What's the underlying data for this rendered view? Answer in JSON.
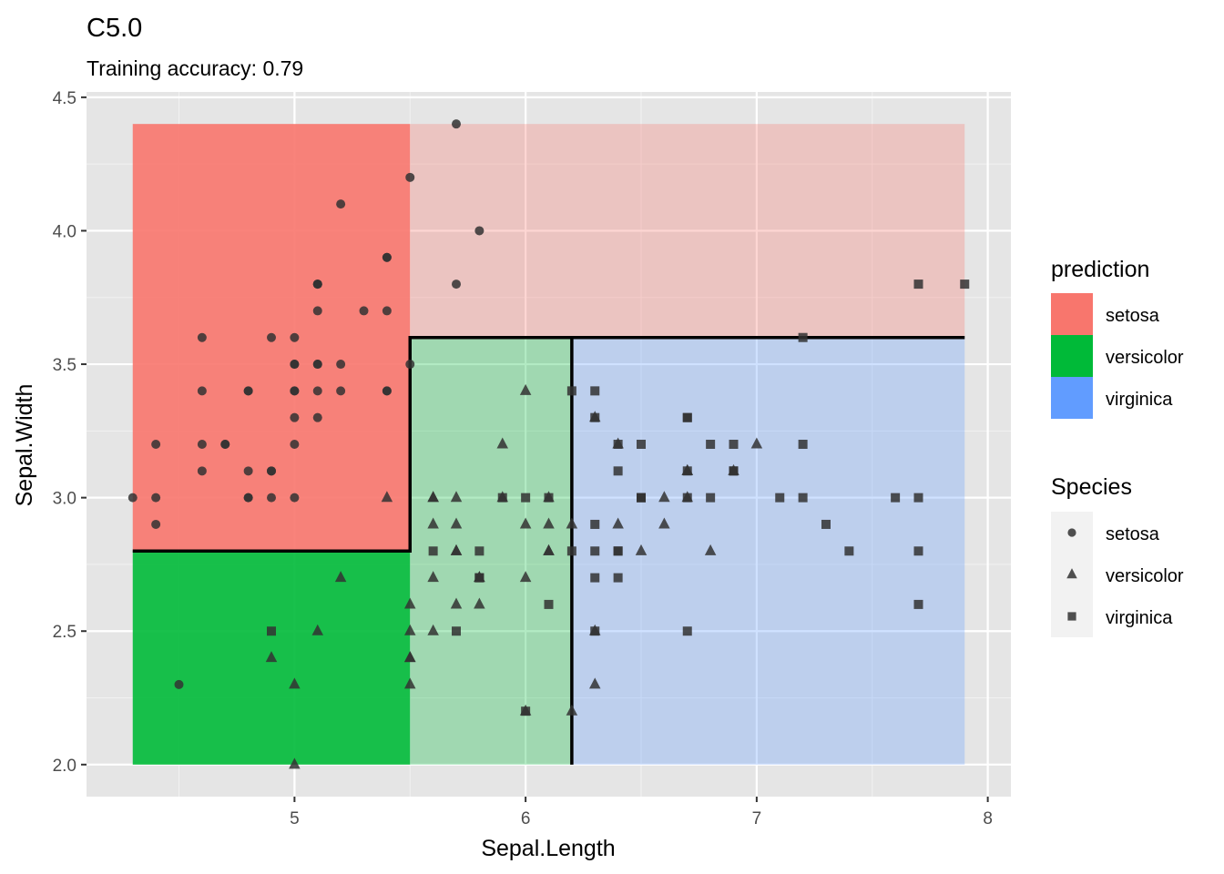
{
  "chart_data": {
    "type": "scatter",
    "title": "C5.0",
    "subtitle": "Training accuracy: 0.79",
    "xlabel": "Sepal.Length",
    "ylabel": "Sepal.Width",
    "xlim": [
      4.1,
      8.1
    ],
    "ylim": [
      1.88,
      4.52
    ],
    "x_ticks": [
      "5",
      "6",
      "7",
      "8"
    ],
    "x_tick_values": [
      5,
      6,
      7,
      8
    ],
    "y_ticks": [
      "2.0",
      "2.5",
      "3.0",
      "3.5",
      "4.0",
      "4.5"
    ],
    "y_tick_values": [
      2.0,
      2.5,
      3.0,
      3.5,
      4.0,
      4.5
    ],
    "grid": true,
    "background_color": "#e5e5e5",
    "prediction_colors": {
      "setosa": "#f8766d",
      "versicolor": "#00ba38",
      "virginica": "#619cff"
    },
    "regions": [
      {
        "label": "setosa",
        "x": [
          4.3,
          5.5
        ],
        "y": [
          2.8,
          4.4
        ],
        "shade": "strong"
      },
      {
        "label": "setosa",
        "x": [
          5.5,
          7.9
        ],
        "y": [
          3.6,
          4.4
        ],
        "shade": "light"
      },
      {
        "label": "versicolor",
        "x": [
          4.3,
          5.5
        ],
        "y": [
          2.0,
          2.8
        ],
        "shade": "strong"
      },
      {
        "label": "versicolor",
        "x": [
          5.5,
          6.2
        ],
        "y": [
          2.0,
          3.6
        ],
        "shade": "light"
      },
      {
        "label": "virginica",
        "x": [
          6.2,
          7.9
        ],
        "y": [
          2.0,
          3.6
        ],
        "shade": "light"
      }
    ],
    "boundaries": [
      [
        [
          4.3,
          2.8
        ],
        [
          5.5,
          2.8
        ],
        [
          5.5,
          3.6
        ],
        [
          7.9,
          3.6
        ]
      ],
      [
        [
          6.2,
          2.0
        ],
        [
          6.2,
          3.6
        ]
      ]
    ],
    "legend": {
      "position": "right",
      "prediction": {
        "title": "prediction",
        "items": [
          "setosa",
          "versicolor",
          "virginica"
        ]
      },
      "species": {
        "title": "Species",
        "items": [
          {
            "label": "setosa",
            "shape": "circle"
          },
          {
            "label": "versicolor",
            "shape": "triangle"
          },
          {
            "label": "virginica",
            "shape": "square"
          }
        ]
      }
    },
    "series": [
      {
        "name": "setosa",
        "shape": "circle",
        "points": [
          [
            5.1,
            3.5
          ],
          [
            4.9,
            3.0
          ],
          [
            4.7,
            3.2
          ],
          [
            4.6,
            3.1
          ],
          [
            5.0,
            3.6
          ],
          [
            5.4,
            3.9
          ],
          [
            4.6,
            3.4
          ],
          [
            5.0,
            3.4
          ],
          [
            4.4,
            2.9
          ],
          [
            4.9,
            3.1
          ],
          [
            5.4,
            3.7
          ],
          [
            4.8,
            3.4
          ],
          [
            4.8,
            3.0
          ],
          [
            4.3,
            3.0
          ],
          [
            5.8,
            4.0
          ],
          [
            5.7,
            4.4
          ],
          [
            5.4,
            3.9
          ],
          [
            5.1,
            3.5
          ],
          [
            5.7,
            3.8
          ],
          [
            5.1,
            3.8
          ],
          [
            5.4,
            3.4
          ],
          [
            5.1,
            3.7
          ],
          [
            4.6,
            3.6
          ],
          [
            5.1,
            3.3
          ],
          [
            4.8,
            3.4
          ],
          [
            5.0,
            3.0
          ],
          [
            5.0,
            3.4
          ],
          [
            5.2,
            3.5
          ],
          [
            5.2,
            3.4
          ],
          [
            4.7,
            3.2
          ],
          [
            4.8,
            3.1
          ],
          [
            5.4,
            3.4
          ],
          [
            5.2,
            4.1
          ],
          [
            5.5,
            4.2
          ],
          [
            4.9,
            3.1
          ],
          [
            5.0,
            3.2
          ],
          [
            5.5,
            3.5
          ],
          [
            4.9,
            3.6
          ],
          [
            4.4,
            3.0
          ],
          [
            5.1,
            3.4
          ],
          [
            5.0,
            3.5
          ],
          [
            4.5,
            2.3
          ],
          [
            4.4,
            3.2
          ],
          [
            5.0,
            3.5
          ],
          [
            5.1,
            3.8
          ],
          [
            4.8,
            3.0
          ],
          [
            5.1,
            3.8
          ],
          [
            4.6,
            3.2
          ],
          [
            5.3,
            3.7
          ],
          [
            5.0,
            3.3
          ]
        ]
      },
      {
        "name": "versicolor",
        "shape": "triangle",
        "points": [
          [
            7.0,
            3.2
          ],
          [
            6.4,
            3.2
          ],
          [
            6.9,
            3.1
          ],
          [
            5.5,
            2.3
          ],
          [
            6.5,
            2.8
          ],
          [
            5.7,
            2.8
          ],
          [
            6.3,
            3.3
          ],
          [
            4.9,
            2.4
          ],
          [
            6.6,
            2.9
          ],
          [
            5.2,
            2.7
          ],
          [
            5.0,
            2.0
          ],
          [
            5.9,
            3.0
          ],
          [
            6.0,
            2.2
          ],
          [
            6.1,
            2.9
          ],
          [
            5.6,
            2.9
          ],
          [
            6.7,
            3.1
          ],
          [
            5.6,
            3.0
          ],
          [
            5.8,
            2.7
          ],
          [
            6.2,
            2.2
          ],
          [
            5.6,
            2.5
          ],
          [
            5.9,
            3.2
          ],
          [
            6.1,
            2.8
          ],
          [
            6.3,
            2.5
          ],
          [
            6.1,
            2.8
          ],
          [
            6.4,
            2.9
          ],
          [
            6.6,
            3.0
          ],
          [
            6.8,
            2.8
          ],
          [
            6.7,
            3.0
          ],
          [
            6.0,
            2.9
          ],
          [
            5.7,
            2.6
          ],
          [
            5.5,
            2.4
          ],
          [
            5.5,
            2.4
          ],
          [
            5.8,
            2.7
          ],
          [
            6.0,
            2.7
          ],
          [
            5.4,
            3.0
          ],
          [
            6.0,
            3.4
          ],
          [
            6.7,
            3.1
          ],
          [
            6.3,
            2.3
          ],
          [
            5.6,
            3.0
          ],
          [
            5.5,
            2.5
          ],
          [
            5.5,
            2.6
          ],
          [
            6.1,
            3.0
          ],
          [
            5.8,
            2.6
          ],
          [
            5.0,
            2.3
          ],
          [
            5.6,
            2.7
          ],
          [
            5.7,
            3.0
          ],
          [
            5.7,
            2.9
          ],
          [
            6.2,
            2.9
          ],
          [
            5.1,
            2.5
          ],
          [
            5.7,
            2.8
          ]
        ]
      },
      {
        "name": "virginica",
        "shape": "square",
        "points": [
          [
            6.3,
            3.3
          ],
          [
            5.8,
            2.7
          ],
          [
            7.1,
            3.0
          ],
          [
            6.3,
            2.9
          ],
          [
            6.5,
            3.0
          ],
          [
            7.6,
            3.0
          ],
          [
            4.9,
            2.5
          ],
          [
            7.3,
            2.9
          ],
          [
            6.7,
            2.5
          ],
          [
            7.2,
            3.6
          ],
          [
            6.5,
            3.2
          ],
          [
            6.4,
            2.7
          ],
          [
            6.8,
            3.0
          ],
          [
            5.7,
            2.5
          ],
          [
            5.8,
            2.8
          ],
          [
            6.4,
            3.2
          ],
          [
            6.5,
            3.0
          ],
          [
            7.7,
            3.8
          ],
          [
            7.7,
            2.6
          ],
          [
            6.0,
            2.2
          ],
          [
            6.9,
            3.2
          ],
          [
            5.6,
            2.8
          ],
          [
            7.7,
            2.8
          ],
          [
            6.3,
            2.7
          ],
          [
            6.7,
            3.3
          ],
          [
            7.2,
            3.2
          ],
          [
            6.2,
            2.8
          ],
          [
            6.1,
            3.0
          ],
          [
            6.4,
            2.8
          ],
          [
            7.2,
            3.0
          ],
          [
            7.4,
            2.8
          ],
          [
            7.9,
            3.8
          ],
          [
            6.4,
            2.8
          ],
          [
            6.3,
            2.8
          ],
          [
            6.1,
            2.6
          ],
          [
            7.7,
            3.0
          ],
          [
            6.3,
            3.4
          ],
          [
            6.4,
            3.1
          ],
          [
            6.0,
            3.0
          ],
          [
            6.9,
            3.1
          ],
          [
            6.7,
            3.1
          ],
          [
            6.9,
            3.1
          ],
          [
            5.8,
            2.7
          ],
          [
            6.8,
            3.2
          ],
          [
            6.7,
            3.3
          ],
          [
            6.7,
            3.0
          ],
          [
            6.3,
            2.5
          ],
          [
            6.5,
            3.0
          ],
          [
            6.2,
            3.4
          ],
          [
            5.9,
            3.0
          ]
        ]
      }
    ]
  }
}
